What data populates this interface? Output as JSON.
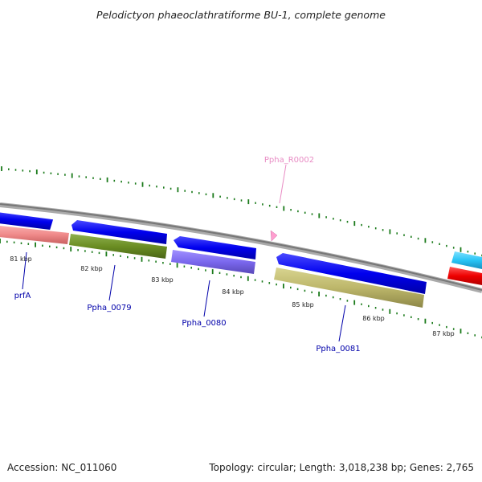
{
  "title": "Pelodictyon phaeoclathratiforme BU-1, complete genome",
  "footer": {
    "accession": "Accession: NC_011060",
    "topology": "Topology: circular; Length: 3,018,238 bp; Genes: 2,765"
  },
  "scale_labels": [
    "81 kbp",
    "82 kbp",
    "83 kbp",
    "84 kbp",
    "85 kbp",
    "86 kbp",
    "87 kbp"
  ],
  "genes": [
    {
      "label": "prfA",
      "color": "#f08a8a"
    },
    {
      "label": "Ppha_0079",
      "color": "#6b8e23"
    },
    {
      "label": "Ppha_0080",
      "color": "#7b68ee"
    },
    {
      "label": "Ppha_0081",
      "color": "#bdb76b"
    },
    {
      "label": "Ppha_R0002",
      "color": "#ff9ecf"
    }
  ],
  "colors": {
    "cds": "#0000ee",
    "backbone": "#888888",
    "tick": "#1a7a1a",
    "label_line": "#0000aa",
    "trna": "#ff9ecf",
    "cds_cyan": "#29c5f6",
    "cds_red": "#ee0000"
  }
}
